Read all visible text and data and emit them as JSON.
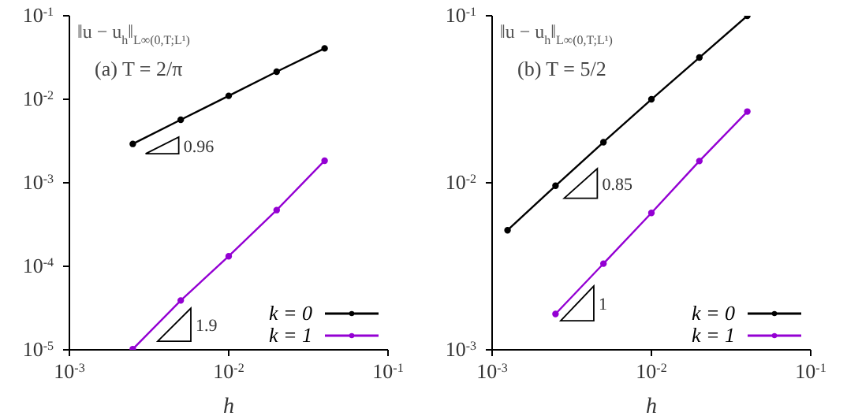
{
  "chart_data": [
    {
      "type": "line",
      "title": "‖u − u$_{h}$‖$_{L∞(0,T;L¹)}$",
      "subtitle": "(a) T = 2/π",
      "xlabel": "h",
      "x": [
        0.0025,
        0.005,
        0.01,
        0.02,
        0.04
      ],
      "series": [
        {
          "name": "k = 0",
          "color": "#000000",
          "values": [
            0.00292,
            0.00569,
            0.011,
            0.0214,
            0.0407
          ]
        },
        {
          "name": "k = 1",
          "color": "#9400d3",
          "values": [
            1.02e-05,
            3.9e-05,
            0.000132,
            0.000471,
            0.00184
          ]
        }
      ],
      "xlim": [
        0.001,
        0.1
      ],
      "ylim": [
        1e-05,
        0.1
      ],
      "log": "xy",
      "xticks": [
        {
          "value": 0.001,
          "label": "10$^{-3}$"
        },
        {
          "value": 0.01,
          "label": "10$^{-2}$"
        },
        {
          "value": 0.1,
          "label": "10$^{-1}$"
        }
      ],
      "yticks": [
        {
          "value": 1e-05,
          "label": "10$^{-5}$"
        },
        {
          "value": 0.0001,
          "label": "10$^{-4}$"
        },
        {
          "value": 0.001,
          "label": "10$^{-3}$"
        },
        {
          "value": 0.01,
          "label": "10$^{-2}$"
        },
        {
          "value": 0.1,
          "label": "10$^{-1}$"
        }
      ],
      "annotations": [
        "0.96",
        "1.9"
      ],
      "legend": "bottom right",
      "marker": "circle",
      "grid": false
    },
    {
      "type": "line",
      "title": "‖u − u$_{h}$‖$_{L∞(0,T;L¹)}$",
      "subtitle": "(b) T = 5/2",
      "xlabel": "h",
      "x": [
        0.00125,
        0.0025,
        0.005,
        0.01,
        0.02,
        0.04
      ],
      "series": [
        {
          "name": "k = 0",
          "color": "#000000",
          "values": [
            0.0052,
            0.0096,
            0.0175,
            0.0316,
            0.0562,
            0.1
          ]
        },
        {
          "name": "k = 1",
          "color": "#9400d3",
          "values": [
            null,
            0.00164,
            0.00328,
            0.0066,
            0.0135,
            0.0267
          ]
        }
      ],
      "xlim": [
        0.001,
        0.1
      ],
      "ylim": [
        0.001,
        0.1
      ],
      "log": "xy",
      "xticks": [
        {
          "value": 0.001,
          "label": "10$^{-3}$"
        },
        {
          "value": 0.01,
          "label": "10$^{-2}$"
        },
        {
          "value": 0.1,
          "label": "10$^{-1}$"
        }
      ],
      "yticks": [
        {
          "value": 0.001,
          "label": "10$^{-3}$"
        },
        {
          "value": 0.01,
          "label": "10$^{-2}$"
        },
        {
          "value": 0.1,
          "label": "10$^{-1}$"
        }
      ],
      "annotations": [
        "0.85",
        "1"
      ],
      "legend": "bottom right",
      "marker": "circle",
      "grid": false
    }
  ]
}
